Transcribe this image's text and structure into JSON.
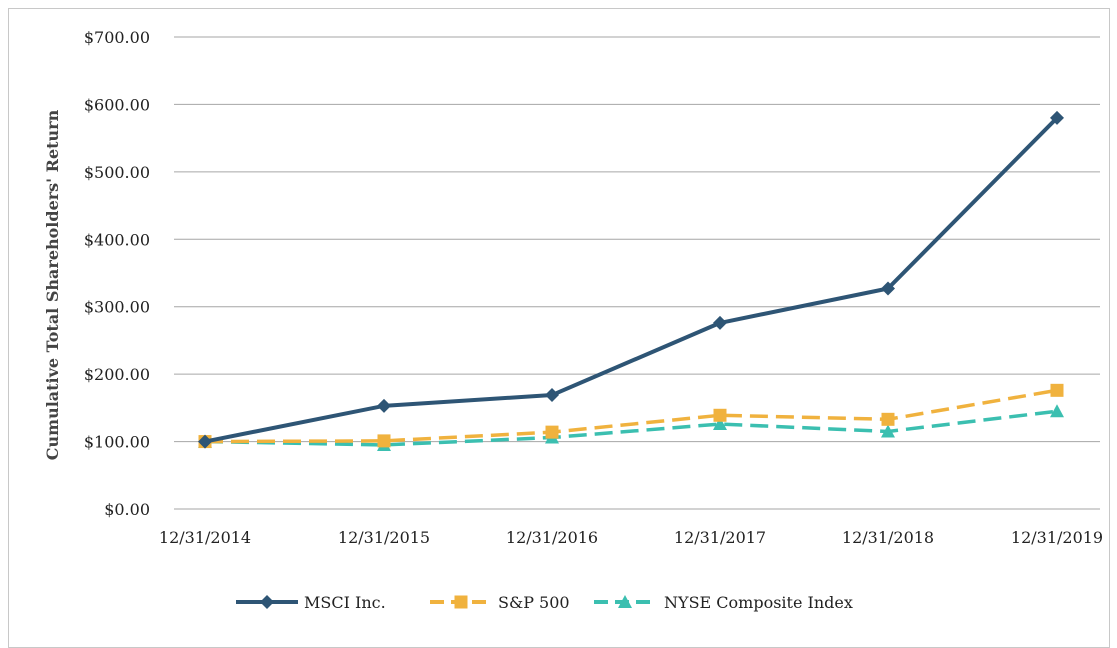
{
  "chart_data": {
    "type": "line",
    "title": "",
    "xlabel": "",
    "ylabel": "Cumulative Total Shareholders' Return",
    "categories": [
      "12/31/2014",
      "12/31/2015",
      "12/31/2016",
      "12/31/2017",
      "12/31/2018",
      "12/31/2019"
    ],
    "yticks": [
      "$0.00",
      "$100.00",
      "$200.00",
      "$300.00",
      "$400.00",
      "$500.00",
      "$600.00",
      "$700.00"
    ],
    "ylim": [
      0,
      700
    ],
    "grid": true,
    "legend_position": "bottom",
    "series": [
      {
        "name": "MSCI Inc.",
        "values": [
          100,
          153,
          169,
          276,
          327,
          580
        ],
        "color": "#2e5575",
        "style": "solid",
        "marker": "diamond"
      },
      {
        "name": "S&P 500",
        "values": [
          100,
          101,
          114,
          139,
          133,
          176
        ],
        "color": "#f0b23e",
        "style": "dashed",
        "marker": "square"
      },
      {
        "name": "NYSE Composite Index",
        "values": [
          100,
          95,
          106,
          126,
          115,
          145
        ],
        "color": "#3bbfb0",
        "style": "dashed",
        "marker": "triangle"
      }
    ]
  }
}
